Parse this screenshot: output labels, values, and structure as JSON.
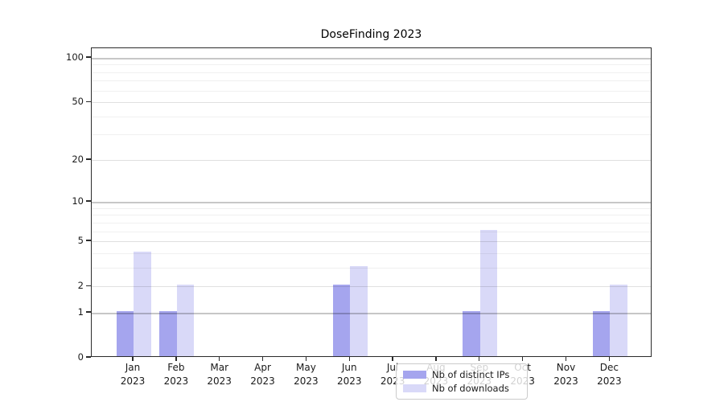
{
  "chart_data": {
    "type": "bar",
    "title": "DoseFinding 2023",
    "x_month_labels": [
      "Jan",
      "Feb",
      "Mar",
      "Apr",
      "May",
      "Jun",
      "Jul",
      "Aug",
      "Sep",
      "Oct",
      "Nov",
      "Dec"
    ],
    "x_year_label": "2023",
    "series": [
      {
        "name": "Nb of distinct IPs",
        "color": "#a5a5ee",
        "values": [
          1,
          1,
          0,
          0,
          0,
          2,
          0,
          0,
          1,
          0,
          0,
          1
        ]
      },
      {
        "name": "Nb of downloads",
        "color": "#d9d9f8",
        "values": [
          4,
          2,
          0,
          0,
          0,
          3,
          0,
          0,
          6,
          0,
          0,
          2
        ]
      }
    ],
    "yticks": [
      0,
      1,
      2,
      5,
      10,
      20,
      50,
      100
    ],
    "major_gridlines": [
      1,
      10,
      100
    ],
    "labeled_gridlines": [
      2,
      5,
      20,
      50
    ],
    "minor_gridlines": [
      3,
      4,
      6,
      7,
      8,
      9,
      30,
      40,
      60,
      70,
      80,
      90
    ],
    "scale": "log1p",
    "ylim": [
      0,
      100
    ],
    "grid": true,
    "legend_position": "lower center",
    "axis_color": "#2b2b2b"
  }
}
